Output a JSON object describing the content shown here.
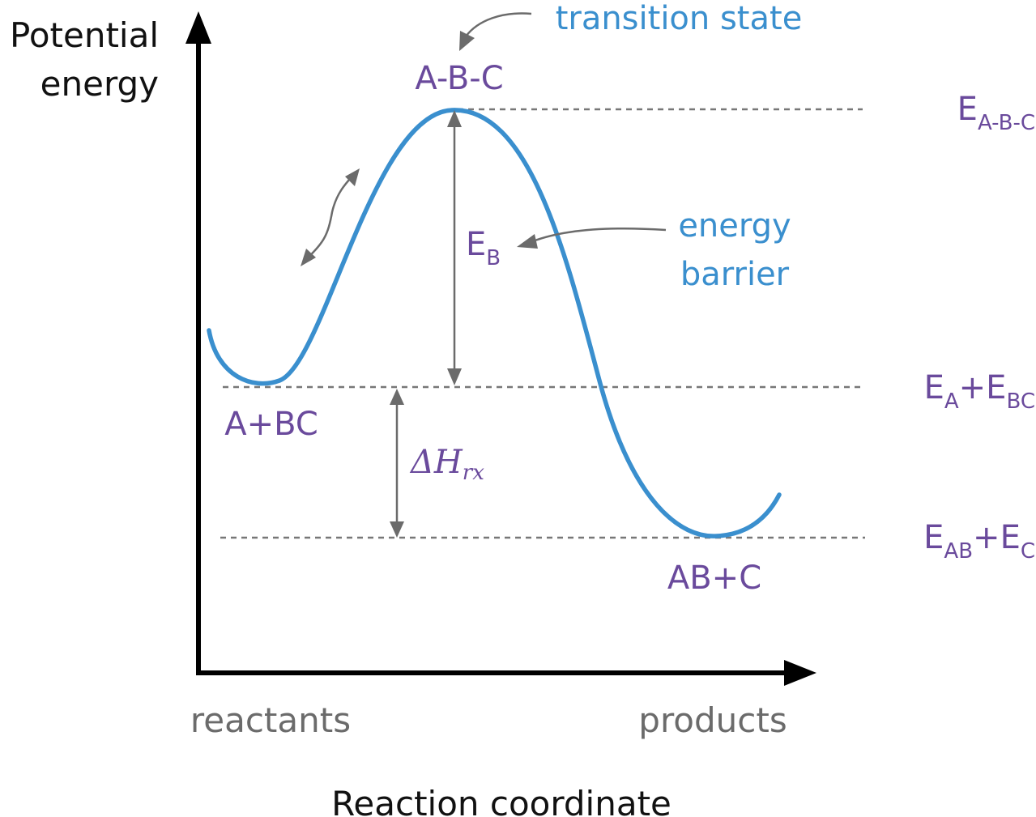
{
  "colors": {
    "curve": "#3a8fce",
    "label": "#6a4a9c",
    "annotation": "#6b6b6b",
    "axis": "#000000"
  },
  "axes": {
    "y_label_line1": "Potential",
    "y_label_line2": "energy",
    "x_label": "Reaction coordinate",
    "x_start": "reactants",
    "x_end": "products"
  },
  "states": {
    "transition": "A-B-C",
    "reactants": "A+BC",
    "products": "AB+C"
  },
  "annotations": {
    "transition_state": "transition state",
    "energy_barrier_line1": "energy",
    "energy_barrier_line2": "barrier",
    "barrier_symbol": "E",
    "barrier_subscript": "B",
    "enthalpy_symbol": "ΔH",
    "enthalpy_subscript": "rx"
  },
  "energy_levels": {
    "transition": {
      "main": "E",
      "sub": "A-B-C"
    },
    "reactants": {
      "e1": "E",
      "s1": "A",
      "plus": "+",
      "e2": "E",
      "s2": "BC"
    },
    "products": {
      "e1": "E",
      "s1": "AB",
      "plus": "+",
      "e2": "E",
      "s2": "C"
    }
  }
}
